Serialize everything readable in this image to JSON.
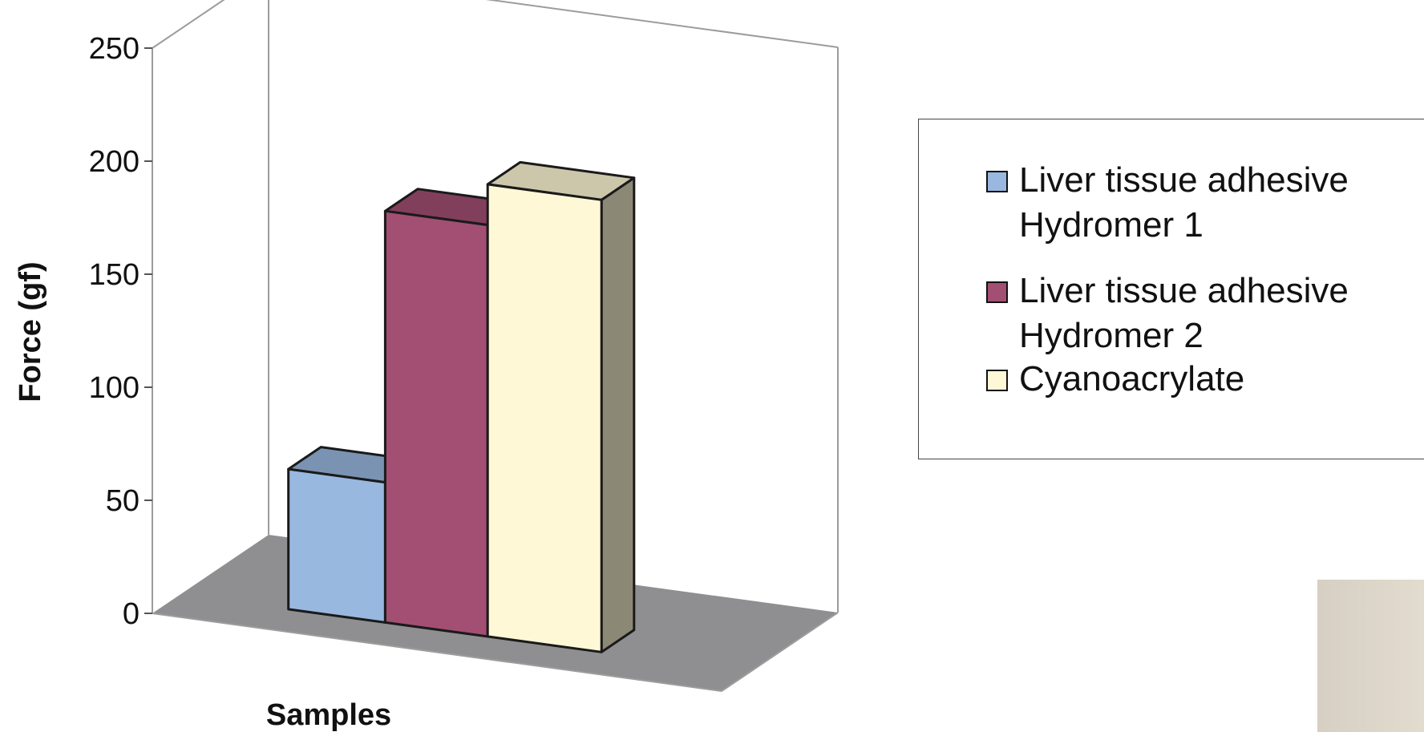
{
  "chart_data": {
    "type": "bar",
    "style": "3d-clustered-column",
    "title": "",
    "xlabel": "Samples",
    "ylabel": "Force (gf)",
    "ylim": [
      0,
      250
    ],
    "yticks": [
      0,
      50,
      100,
      150,
      200,
      250
    ],
    "categories": [
      ""
    ],
    "grid": false,
    "legend_position": "right",
    "series": [
      {
        "name": "Liver tissue adhesive Hydromer 1",
        "values": [
          62
        ],
        "color": "#99b8e0"
      },
      {
        "name": "Liver tissue adhesive Hydromer 2",
        "values": [
          182
        ],
        "color": "#a24f73"
      },
      {
        "name": "Cyanoacrylate",
        "values": [
          200
        ],
        "color": "#fff8d6"
      }
    ]
  }
}
